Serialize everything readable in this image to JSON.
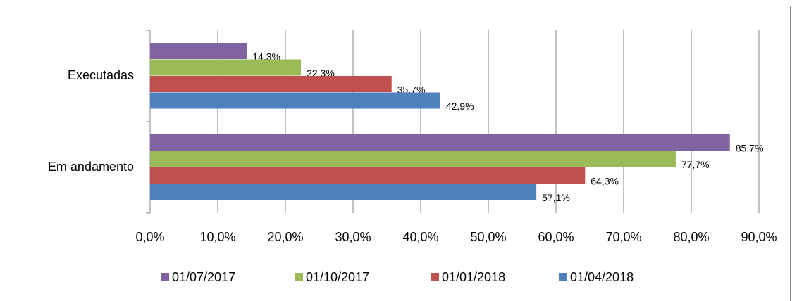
{
  "chart_data": {
    "type": "hbar",
    "categories": [
      "Executadas",
      "Em andamento"
    ],
    "series": [
      {
        "name": "01/07/2017",
        "color": "#8064a2",
        "values": [
          14.3,
          85.7
        ],
        "value_labels": [
          "14,3%",
          "85,7%"
        ]
      },
      {
        "name": "01/10/2017",
        "color": "#9bbb59",
        "values": [
          22.3,
          77.7
        ],
        "value_labels": [
          "22,3%",
          "77,7%"
        ]
      },
      {
        "name": "01/01/2018",
        "color": "#c0504d",
        "values": [
          35.7,
          64.3
        ],
        "value_labels": [
          "35,7%",
          "64,3%"
        ]
      },
      {
        "name": "01/04/2018",
        "color": "#4f81bd",
        "values": [
          42.9,
          57.1
        ],
        "value_labels": [
          "42,9%",
          "57,1%"
        ]
      }
    ],
    "xlim": [
      0,
      90
    ],
    "xticks": [
      {
        "value": 0,
        "label": "0,0%"
      },
      {
        "value": 10,
        "label": "10,0%"
      },
      {
        "value": 20,
        "label": "20,0%"
      },
      {
        "value": 30,
        "label": "30,0%"
      },
      {
        "value": 40,
        "label": "40,0%"
      },
      {
        "value": 50,
        "label": "50,0%"
      },
      {
        "value": 60,
        "label": "60,0%"
      },
      {
        "value": 70,
        "label": "70,0%"
      },
      {
        "value": 80,
        "label": "80,0%"
      },
      {
        "value": 90,
        "label": "90,0%"
      }
    ],
    "grid": true,
    "legend": "bottom"
  }
}
